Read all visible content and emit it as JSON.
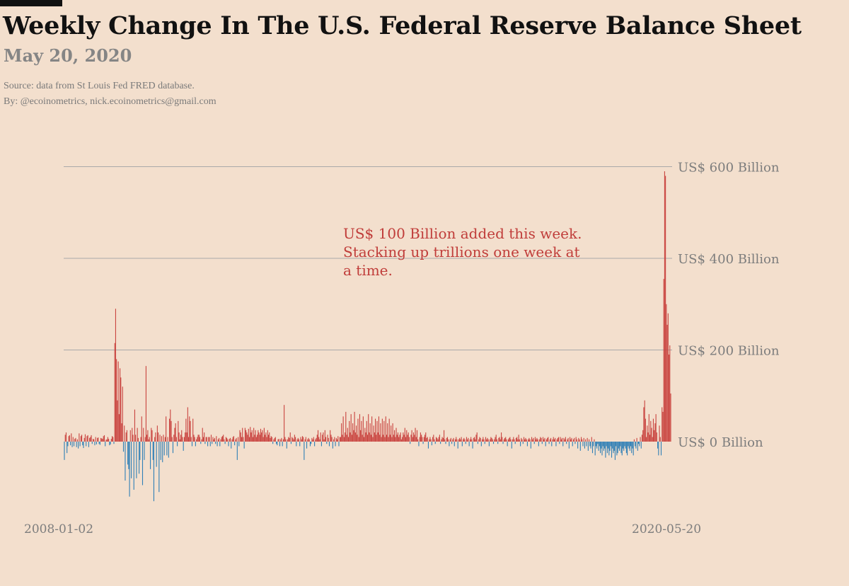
{
  "header": {
    "title": "Weekly Change In The U.S. Federal Reserve Balance Sheet",
    "date": "May 20, 2020",
    "source": "Source: data from  St Louis Fed FRED database.",
    "by": "By: @ecoinometrics, nick.ecoinometrics@gmail.com"
  },
  "chart_data": {
    "type": "bar",
    "title": "Weekly Change In The U.S. Federal Reserve Balance Sheet",
    "unit": "US$ Billion",
    "x_start": "2008-01-02",
    "x_end": "2020-05-20",
    "x_tick_labels": [
      "2008-01-02",
      "2020-05-20"
    ],
    "y_ticks": [
      0,
      200,
      400,
      600
    ],
    "y_tick_labels": [
      "US$ 0 Billion",
      "US$ 200 Billion",
      "US$ 400 Billion",
      "US$ 600 Billion"
    ],
    "ylim": [
      -130,
      600
    ],
    "grid": true,
    "annotation": "US$ 100 Billion added this week. Stacking up trillions one week at a time.",
    "colors": {
      "positive": "#c9433f",
      "negative": "#2e7fb6",
      "grid": "#a9a9a9",
      "axis_text": "#7d7d7d",
      "annotation": "#c03d3a"
    },
    "values": [
      -40,
      15,
      20,
      -25,
      -10,
      12,
      14,
      -8,
      18,
      -12,
      10,
      -10,
      6,
      8,
      -12,
      5,
      -15,
      18,
      -10,
      12,
      15,
      -8,
      -14,
      8,
      16,
      -10,
      12,
      14,
      -12,
      8,
      10,
      14,
      -5,
      6,
      5,
      -8,
      10,
      -6,
      8,
      9,
      -5,
      -7,
      8,
      7,
      6,
      12,
      14,
      -10,
      4,
      5,
      10,
      6,
      -8,
      -6,
      6,
      12,
      10,
      -5,
      215,
      290,
      180,
      90,
      175,
      60,
      160,
      140,
      40,
      120,
      -22,
      35,
      -85,
      20,
      25,
      -50,
      -60,
      -120,
      25,
      -80,
      30,
      15,
      -105,
      70,
      15,
      -80,
      30,
      8,
      -70,
      -40,
      10,
      55,
      -95,
      30,
      -40,
      10,
      165,
      15,
      25,
      5,
      10,
      -60,
      30,
      25,
      -40,
      -130,
      10,
      20,
      -55,
      35,
      20,
      -110,
      15,
      -40,
      12,
      -45,
      15,
      -30,
      10,
      55,
      -30,
      10,
      -35,
      50,
      70,
      45,
      10,
      -25,
      15,
      30,
      40,
      10,
      -10,
      45,
      20,
      5,
      15,
      25,
      10,
      -20,
      10,
      20,
      50,
      20,
      75,
      10,
      55,
      45,
      10,
      -10,
      50,
      15,
      10,
      -10,
      5,
      10,
      15,
      15,
      10,
      -5,
      5,
      30,
      10,
      20,
      -5,
      10,
      10,
      -10,
      10,
      10,
      -10,
      15,
      -5,
      10,
      5,
      8,
      -5,
      12,
      -10,
      5,
      8,
      -10,
      5,
      10,
      12,
      15,
      5,
      -5,
      10,
      8,
      5,
      -10,
      6,
      8,
      -15,
      5,
      10,
      12,
      -8,
      5,
      8,
      -40,
      10,
      -10,
      25,
      20,
      10,
      30,
      10,
      -15,
      30,
      25,
      20,
      15,
      28,
      10,
      32,
      20,
      25,
      10,
      30,
      15,
      25,
      10,
      15,
      25,
      20,
      15,
      28,
      20,
      25,
      10,
      30,
      15,
      20,
      10,
      25,
      15,
      20,
      8,
      12,
      10,
      -5,
      5,
      8,
      10,
      -5,
      -8,
      5,
      6,
      -10,
      5,
      8,
      -10,
      5,
      80,
      10,
      5,
      -15,
      5,
      10,
      8,
      20,
      -5,
      10,
      8,
      5,
      15,
      10,
      -10,
      5,
      8,
      5,
      -10,
      10,
      5,
      12,
      10,
      -40,
      5,
      10,
      -15,
      5,
      8,
      5,
      -10,
      -5,
      8,
      5,
      10,
      -10,
      5,
      8,
      15,
      25,
      10,
      5,
      20,
      -10,
      15,
      20,
      5,
      25,
      10,
      -5,
      15,
      8,
      -10,
      25,
      15,
      10,
      -15,
      5,
      10,
      -10,
      8,
      5,
      12,
      -10,
      10,
      10,
      40,
      15,
      55,
      10,
      20,
      65,
      15,
      30,
      10,
      45,
      20,
      60,
      15,
      40,
      25,
      65,
      20,
      35,
      15,
      50,
      10,
      60,
      25,
      45,
      15,
      55,
      10,
      30,
      20,
      45,
      15,
      60,
      20,
      40,
      15,
      55,
      10,
      35,
      20,
      50,
      15,
      45,
      20,
      55,
      15,
      40,
      10,
      50,
      15,
      45,
      10,
      55,
      15,
      40,
      10,
      50,
      15,
      35,
      10,
      40,
      15,
      25,
      10,
      30,
      15,
      20,
      10,
      15,
      20,
      5,
      10,
      20,
      15,
      30,
      10,
      25,
      15,
      20,
      10,
      -5,
      15,
      25,
      10,
      20,
      15,
      30,
      10,
      25,
      5,
      -10,
      10,
      20,
      15,
      10,
      -5,
      10,
      15,
      20,
      8,
      10,
      -15,
      5,
      10,
      5,
      -8,
      10,
      15,
      5,
      -5,
      10,
      8,
      5,
      10,
      15,
      -5,
      5,
      10,
      8,
      25,
      5,
      -5,
      8,
      10,
      5,
      -10,
      5,
      8,
      -5,
      5,
      8,
      -10,
      5,
      10,
      5,
      -15,
      5,
      8,
      5,
      10,
      -10,
      5,
      8,
      5,
      -5,
      10,
      5,
      8,
      -10,
      5,
      10,
      5,
      -15,
      8,
      10,
      5,
      15,
      20,
      -5,
      5,
      10,
      8,
      -10,
      5,
      10,
      5,
      -5,
      10,
      5,
      8,
      5,
      -10,
      5,
      10,
      8,
      5,
      -5,
      5,
      10,
      15,
      5,
      -5,
      8,
      10,
      5,
      20,
      10,
      -5,
      5,
      8,
      10,
      5,
      -10,
      5,
      8,
      10,
      5,
      -15,
      5,
      10,
      5,
      -5,
      8,
      10,
      5,
      15,
      5,
      -10,
      8,
      5,
      -5,
      10,
      5,
      8,
      5,
      -10,
      5,
      8,
      5,
      -15,
      10,
      5,
      8,
      -5,
      10,
      5,
      8,
      5,
      -10,
      5,
      10,
      8,
      -5,
      10,
      5,
      8,
      -10,
      5,
      8,
      10,
      -5,
      5,
      8,
      -10,
      5,
      10,
      5,
      8,
      -10,
      5,
      8,
      10,
      -5,
      10,
      5,
      8,
      -10,
      8,
      5,
      10,
      -5,
      5,
      8,
      -15,
      10,
      5,
      8,
      -10,
      5,
      8,
      -5,
      10,
      5,
      -15,
      8,
      5,
      -20,
      10,
      5,
      -10,
      8,
      -15,
      5,
      -10,
      8,
      -20,
      5,
      -10,
      -15,
      10,
      -25,
      -10,
      5,
      -30,
      -10,
      -15,
      -5,
      -20,
      -10,
      -25,
      -15,
      -30,
      -10,
      -20,
      -15,
      -35,
      -10,
      -25,
      -15,
      -30,
      -20,
      -10,
      -35,
      -15,
      -25,
      -20,
      -40,
      -10,
      -30,
      -25,
      -15,
      -20,
      -10,
      -25,
      -30,
      -15,
      -20,
      -10,
      -15,
      -25,
      -30,
      -10,
      -15,
      -20,
      -10,
      -25,
      -15,
      -30,
      5,
      -10,
      -15,
      8,
      -20,
      -5,
      -10,
      10,
      -15,
      15,
      25,
      75,
      90,
      50,
      10,
      35,
      20,
      60,
      15,
      45,
      30,
      10,
      50,
      25,
      40,
      60,
      20,
      -15,
      -30,
      35,
      10,
      -30,
      75,
      65,
      355,
      590,
      580,
      300,
      255,
      280,
      190,
      210,
      105
    ]
  }
}
